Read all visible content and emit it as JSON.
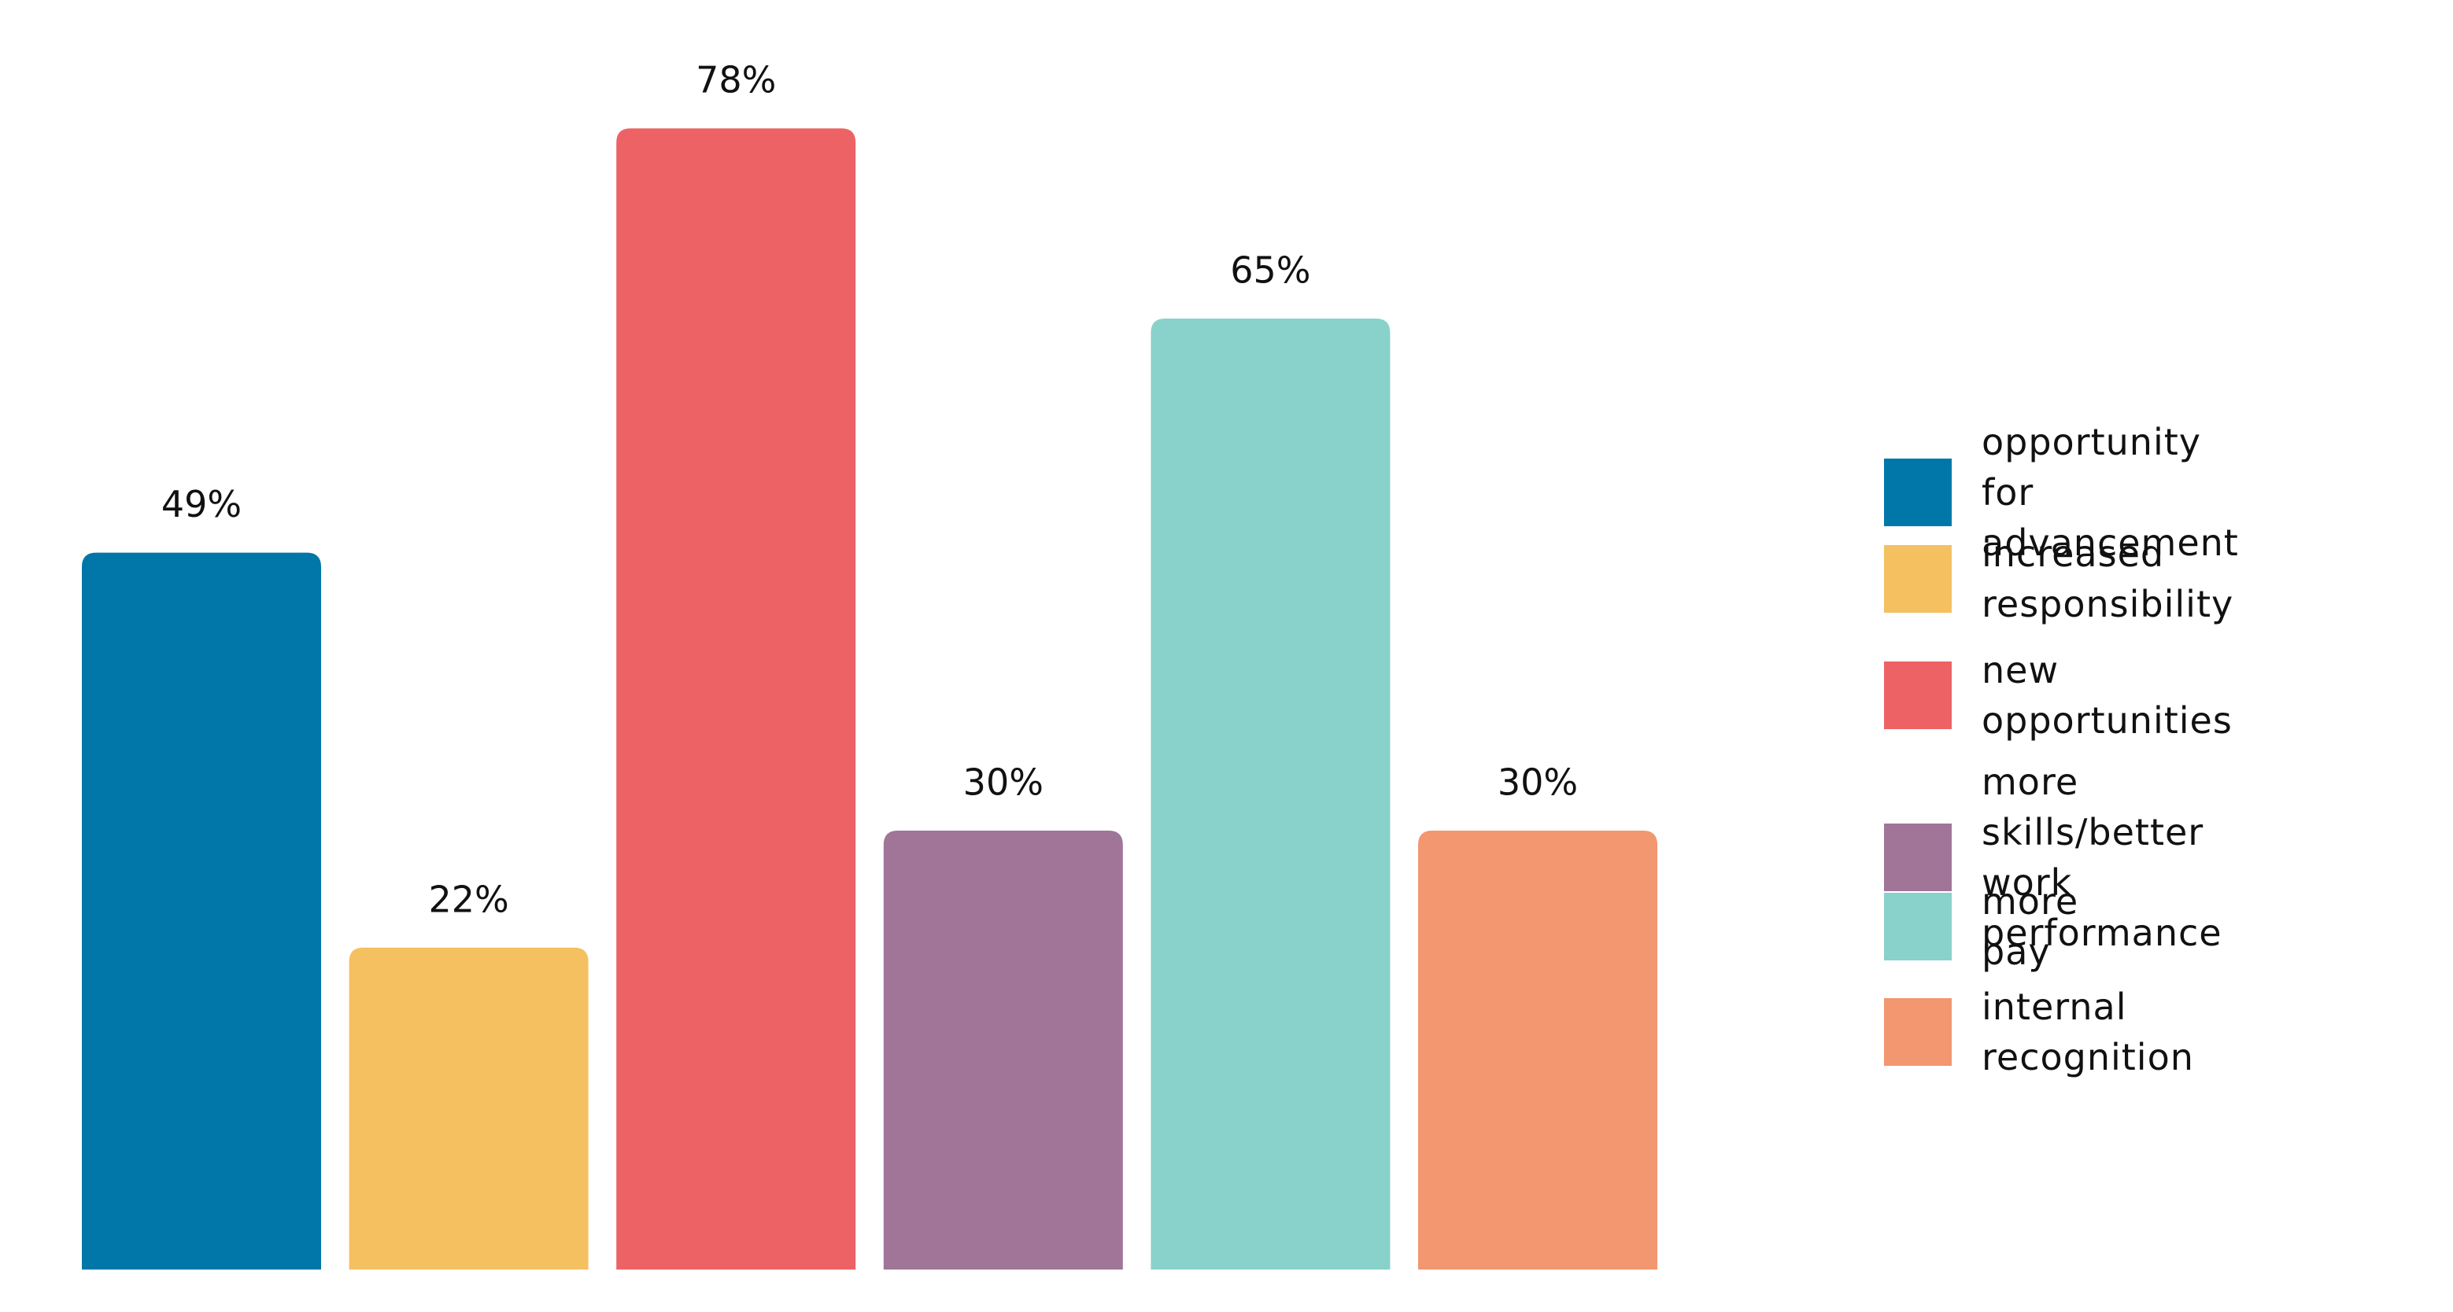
{
  "chart_data": {
    "type": "bar",
    "categories": [
      "opportunity\nfor advancement",
      "increased\nresponsibility",
      "new opportunities",
      "more skills/better\nwork performance",
      "more pay",
      "internal recognition"
    ],
    "values": [
      49,
      22,
      78,
      30,
      65,
      30
    ],
    "value_labels": [
      "49%",
      "22%",
      "78%",
      "30%",
      "65%",
      "30%"
    ],
    "colors": [
      "#0077a8",
      "#f5c060",
      "#ec6265",
      "#a07598",
      "#88d2cb",
      "#f2976f"
    ],
    "legend": "right"
  }
}
